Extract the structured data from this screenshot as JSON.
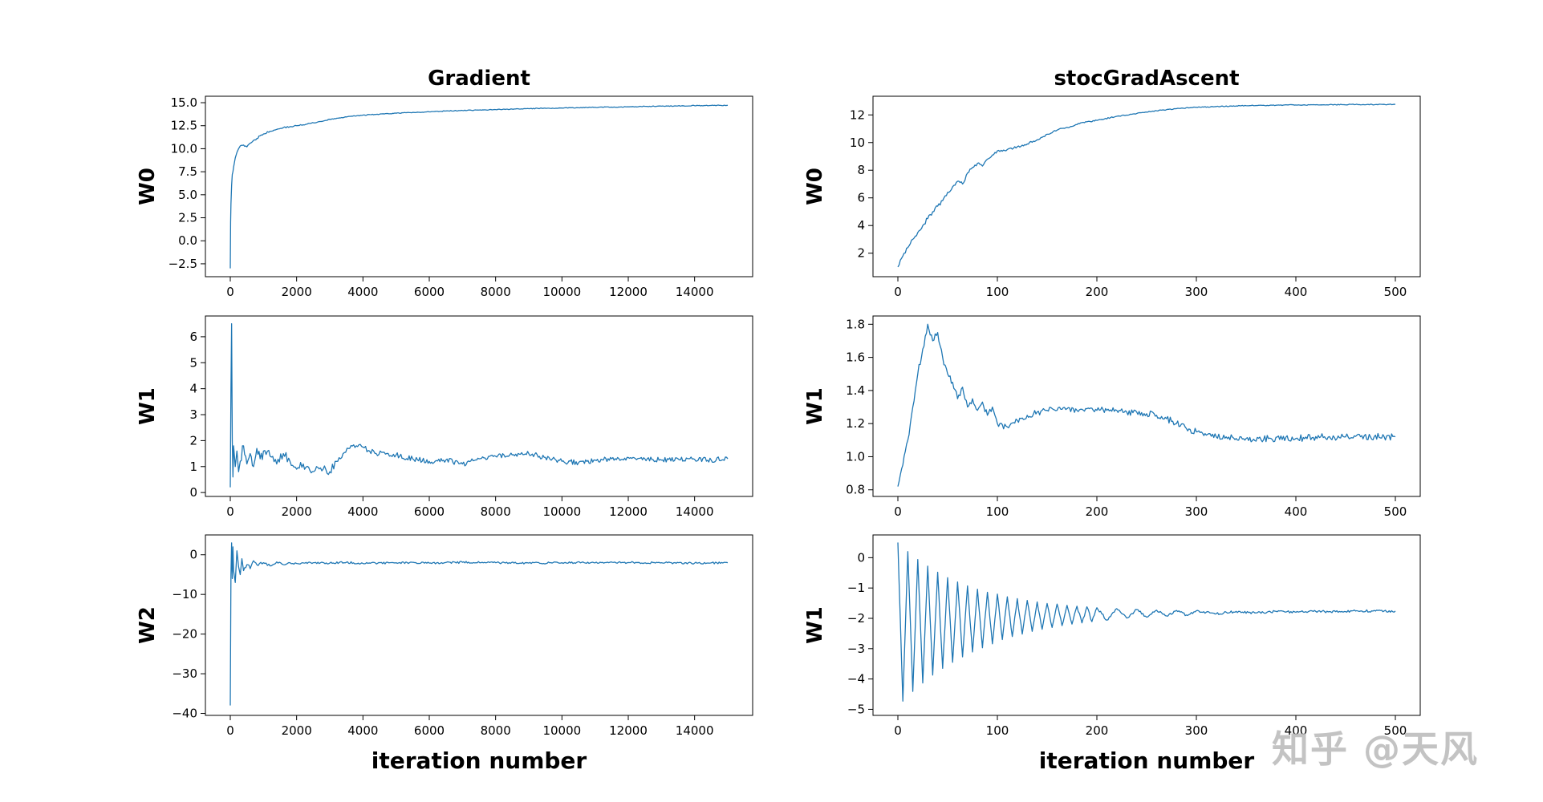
{
  "figure": {
    "background": "#ffffff",
    "watermark": "知乎 @天风"
  },
  "chart_data": [
    {
      "id": "gradient-w0",
      "type": "line",
      "title": "Gradient",
      "ylabel": "W0",
      "xlabel": "",
      "color": "#1f77b4",
      "xlim": [
        -750,
        15750
      ],
      "ylim": [
        -3.9,
        15.7
      ],
      "x_ticks": [
        0,
        2000,
        4000,
        6000,
        8000,
        10000,
        12000,
        14000
      ],
      "x_tick_labels": [
        "0",
        "2000",
        "4000",
        "6000",
        "8000",
        "10000",
        "12000",
        "14000"
      ],
      "y_ticks": [
        15.0,
        12.5,
        10.0,
        7.5,
        5.0,
        2.5,
        0.0,
        -2.5
      ],
      "y_tick_labels": [
        "15.0",
        "12.5",
        "10.0",
        "7.5",
        "5.0",
        "2.5",
        "0.0",
        "−2.5"
      ],
      "noise": 0.12,
      "noise_decay": 3000,
      "noise_min": 0.04,
      "x": [
        0,
        10,
        20,
        40,
        60,
        80,
        100,
        150,
        200,
        250,
        300,
        400,
        500,
        600,
        700,
        800,
        900,
        1000,
        1200,
        1400,
        1600,
        1800,
        2000,
        2200,
        2400,
        2600,
        2800,
        3000,
        3500,
        4000,
        4500,
        5000,
        5500,
        6000,
        6500,
        7000,
        7500,
        8000,
        8500,
        9000,
        9500,
        10000,
        10500,
        11000,
        11500,
        12000,
        12500,
        13000,
        13500,
        14000,
        14500,
        15000
      ],
      "y": [
        -3.0,
        2.0,
        4.0,
        6.0,
        7.2,
        7.5,
        8.0,
        9.0,
        9.6,
        10.0,
        10.3,
        10.4,
        10.2,
        10.6,
        10.9,
        11.1,
        11.4,
        11.6,
        11.9,
        12.1,
        12.3,
        12.4,
        12.5,
        12.6,
        12.75,
        12.85,
        13.0,
        13.2,
        13.45,
        13.65,
        13.75,
        13.85,
        13.95,
        14.0,
        14.1,
        14.15,
        14.2,
        14.25,
        14.3,
        14.35,
        14.4,
        14.42,
        14.45,
        14.5,
        14.52,
        14.55,
        14.6,
        14.62,
        14.65,
        14.68,
        14.7,
        14.72
      ]
    },
    {
      "id": "stocgradascent-w0",
      "type": "line",
      "title": "stocGradAscent",
      "ylabel": "W0",
      "xlabel": "",
      "color": "#1f77b4",
      "xlim": [
        -25,
        525
      ],
      "ylim": [
        0.3,
        13.35
      ],
      "x_ticks": [
        0,
        100,
        200,
        300,
        400,
        500
      ],
      "x_tick_labels": [
        "0",
        "100",
        "200",
        "300",
        "400",
        "500"
      ],
      "y_ticks": [
        12,
        10,
        8,
        6,
        4,
        2
      ],
      "y_tick_labels": [
        "12",
        "10",
        "8",
        "6",
        "4",
        "2"
      ],
      "noise": 0.18,
      "noise_decay": 150,
      "noise_min": 0.03,
      "x": [
        0,
        5,
        10,
        15,
        20,
        25,
        30,
        35,
        40,
        45,
        50,
        55,
        60,
        65,
        70,
        75,
        80,
        85,
        90,
        95,
        100,
        110,
        120,
        130,
        140,
        150,
        160,
        170,
        180,
        190,
        200,
        220,
        240,
        260,
        280,
        300,
        320,
        340,
        360,
        380,
        400,
        420,
        440,
        460,
        480,
        500
      ],
      "y": [
        1.0,
        1.8,
        2.4,
        3.0,
        3.5,
        4.0,
        4.5,
        5.0,
        5.4,
        5.8,
        6.4,
        6.8,
        7.2,
        7.0,
        7.8,
        8.2,
        8.5,
        8.3,
        8.8,
        9.1,
        9.4,
        9.5,
        9.7,
        9.9,
        10.2,
        10.6,
        10.9,
        11.1,
        11.3,
        11.5,
        11.6,
        11.9,
        12.1,
        12.3,
        12.45,
        12.55,
        12.6,
        12.65,
        12.68,
        12.7,
        12.72,
        12.73,
        12.74,
        12.75,
        12.75,
        12.76
      ]
    },
    {
      "id": "gradient-w1",
      "type": "line",
      "title": "",
      "ylabel": "W1",
      "xlabel": "",
      "color": "#1f77b4",
      "xlim": [
        -750,
        15750
      ],
      "ylim": [
        -0.15,
        6.8
      ],
      "x_ticks": [
        0,
        2000,
        4000,
        6000,
        8000,
        10000,
        12000,
        14000
      ],
      "x_tick_labels": [
        "0",
        "2000",
        "4000",
        "6000",
        "8000",
        "10000",
        "12000",
        "14000"
      ],
      "y_ticks": [
        6,
        5,
        4,
        3,
        2,
        1,
        0
      ],
      "y_tick_labels": [
        "6",
        "5",
        "4",
        "3",
        "2",
        "1",
        "0"
      ],
      "noise": 0.3,
      "noise_decay": 4000,
      "noise_min": 0.1,
      "x": [
        0,
        20,
        40,
        60,
        80,
        100,
        150,
        200,
        250,
        300,
        400,
        500,
        600,
        700,
        800,
        900,
        1000,
        1200,
        1400,
        1600,
        1800,
        2000,
        2200,
        2400,
        2600,
        2800,
        3000,
        3200,
        3400,
        3600,
        3800,
        4000,
        4200,
        4400,
        4600,
        4800,
        5000,
        5500,
        6000,
        6500,
        7000,
        7500,
        8000,
        8500,
        9000,
        9500,
        10000,
        10500,
        11000,
        11500,
        12000,
        12500,
        13000,
        13500,
        14000,
        14500,
        15000
      ],
      "y": [
        0.2,
        4.0,
        6.5,
        2.0,
        0.6,
        1.8,
        1.0,
        1.6,
        0.8,
        1.2,
        1.8,
        1.1,
        1.5,
        1.0,
        1.7,
        1.3,
        1.6,
        1.4,
        1.1,
        1.5,
        1.2,
        0.9,
        1.1,
        0.85,
        1.0,
        0.9,
        0.8,
        1.2,
        1.5,
        1.7,
        1.8,
        1.75,
        1.6,
        1.5,
        1.55,
        1.4,
        1.45,
        1.3,
        1.2,
        1.25,
        1.1,
        1.3,
        1.4,
        1.45,
        1.5,
        1.35,
        1.2,
        1.15,
        1.25,
        1.3,
        1.35,
        1.3,
        1.25,
        1.3,
        1.28,
        1.25,
        1.3
      ]
    },
    {
      "id": "stocgradascent-w1",
      "type": "line",
      "title": "",
      "ylabel": "W1",
      "xlabel": "",
      "color": "#1f77b4",
      "xlim": [
        -25,
        525
      ],
      "ylim": [
        0.76,
        1.85
      ],
      "x_ticks": [
        0,
        100,
        200,
        300,
        400,
        500
      ],
      "x_tick_labels": [
        "0",
        "100",
        "200",
        "300",
        "400",
        "500"
      ],
      "y_ticks": [
        1.8,
        1.6,
        1.4,
        1.2,
        1.0,
        0.8
      ],
      "y_tick_labels": [
        "1.8",
        "1.6",
        "1.4",
        "1.2",
        "1.0",
        "0.8"
      ],
      "noise": 0.02,
      "noise_decay": 0,
      "noise_min": 0,
      "x": [
        0,
        5,
        10,
        15,
        20,
        25,
        30,
        35,
        40,
        45,
        50,
        55,
        60,
        65,
        70,
        75,
        80,
        85,
        90,
        95,
        100,
        110,
        120,
        130,
        140,
        150,
        160,
        170,
        180,
        190,
        200,
        210,
        220,
        230,
        240,
        250,
        260,
        270,
        280,
        290,
        300,
        310,
        320,
        330,
        340,
        350,
        375,
        400,
        425,
        450,
        475,
        500
      ],
      "y": [
        0.82,
        0.95,
        1.1,
        1.3,
        1.5,
        1.65,
        1.8,
        1.7,
        1.75,
        1.6,
        1.5,
        1.45,
        1.35,
        1.42,
        1.3,
        1.35,
        1.28,
        1.33,
        1.25,
        1.3,
        1.2,
        1.18,
        1.22,
        1.25,
        1.27,
        1.28,
        1.28,
        1.29,
        1.28,
        1.29,
        1.28,
        1.28,
        1.28,
        1.27,
        1.27,
        1.26,
        1.25,
        1.23,
        1.2,
        1.17,
        1.15,
        1.13,
        1.12,
        1.12,
        1.11,
        1.11,
        1.11,
        1.11,
        1.12,
        1.12,
        1.12,
        1.12
      ]
    },
    {
      "id": "gradient-w2",
      "type": "line",
      "title": "",
      "ylabel": "W2",
      "xlabel": "iteration number",
      "color": "#1f77b4",
      "xlim": [
        -750,
        15750
      ],
      "ylim": [
        -40.5,
        5.0
      ],
      "x_ticks": [
        0,
        2000,
        4000,
        6000,
        8000,
        10000,
        12000,
        14000
      ],
      "x_tick_labels": [
        "0",
        "2000",
        "4000",
        "6000",
        "8000",
        "10000",
        "12000",
        "14000"
      ],
      "y_ticks": [
        0,
        -10,
        -20,
        -30,
        -40
      ],
      "y_tick_labels": [
        "0",
        "−10",
        "−20",
        "−30",
        "−40"
      ],
      "noise": 1.2,
      "noise_decay": 800,
      "noise_min": 0.25,
      "x": [
        0,
        20,
        40,
        60,
        80,
        100,
        150,
        200,
        250,
        300,
        350,
        400,
        500,
        600,
        700,
        800,
        1000,
        1200,
        1400,
        1600,
        1800,
        2000,
        2500,
        3000,
        3500,
        4000,
        5000,
        6000,
        7000,
        8000,
        9000,
        10000,
        11000,
        12000,
        13000,
        14000,
        15000
      ],
      "y": [
        -38,
        -5,
        3,
        -6,
        2,
        -4,
        -7,
        1,
        -3,
        -5,
        -1,
        -4,
        -2.5,
        -3.5,
        -1.5,
        -2.5,
        -2,
        -2.8,
        -1.8,
        -2.5,
        -2,
        -2.2,
        -2,
        -2.1,
        -1.9,
        -2.2,
        -2,
        -2.1,
        -1.9,
        -2,
        -2.1,
        -2,
        -2.05,
        -1.95,
        -2,
        -2.1,
        -2
      ]
    },
    {
      "id": "stocgradascent-w2",
      "type": "line",
      "title": "",
      "ylabel": "W1",
      "xlabel": "iteration number",
      "color": "#1f77b4",
      "xlim": [
        -25,
        525
      ],
      "ylim": [
        -5.2,
        0.75
      ],
      "x_ticks": [
        0,
        100,
        200,
        300,
        400,
        500
      ],
      "x_tick_labels": [
        "0",
        "100",
        "200",
        "300",
        "400",
        "500"
      ],
      "y_ticks": [
        0,
        -1,
        -2,
        -3,
        -4,
        -5
      ],
      "y_tick_labels": [
        "0",
        "−1",
        "−2",
        "−3",
        "−4",
        "−5"
      ],
      "noise": 0.04,
      "noise_decay": 0,
      "noise_min": 0,
      "x": [
        0,
        5,
        10,
        15,
        20,
        25,
        30,
        35,
        40,
        45,
        50,
        55,
        60,
        65,
        70,
        75,
        80,
        85,
        90,
        95,
        100,
        105,
        110,
        115,
        120,
        125,
        130,
        135,
        140,
        145,
        150,
        155,
        160,
        165,
        170,
        175,
        180,
        185,
        190,
        195,
        200,
        210,
        220,
        230,
        240,
        250,
        260,
        270,
        280,
        290,
        300,
        320,
        340,
        360,
        380,
        400,
        420,
        440,
        460,
        480,
        500
      ],
      "y": [
        0.5,
        -4.73,
        0.2,
        -4.41,
        -0.06,
        -4.13,
        -0.28,
        -3.87,
        -0.48,
        -3.65,
        -0.66,
        -3.45,
        -0.8,
        -3.27,
        -0.93,
        -3.11,
        -1.04,
        -2.97,
        -1.14,
        -2.84,
        -1.2,
        -2.7,
        -1.29,
        -2.6,
        -1.35,
        -2.52,
        -1.41,
        -2.43,
        -1.46,
        -2.36,
        -1.51,
        -2.3,
        -1.53,
        -2.24,
        -1.57,
        -2.19,
        -1.6,
        -2.15,
        -1.62,
        -2.11,
        -1.65,
        -2.06,
        -1.68,
        -1.99,
        -1.71,
        -1.96,
        -1.73,
        -1.92,
        -1.74,
        -1.89,
        -1.75,
        -1.85,
        -1.77,
        -1.82,
        -1.77,
        -1.8,
        -1.77,
        -1.78,
        -1.76,
        -1.76,
        -1.76
      ]
    }
  ]
}
